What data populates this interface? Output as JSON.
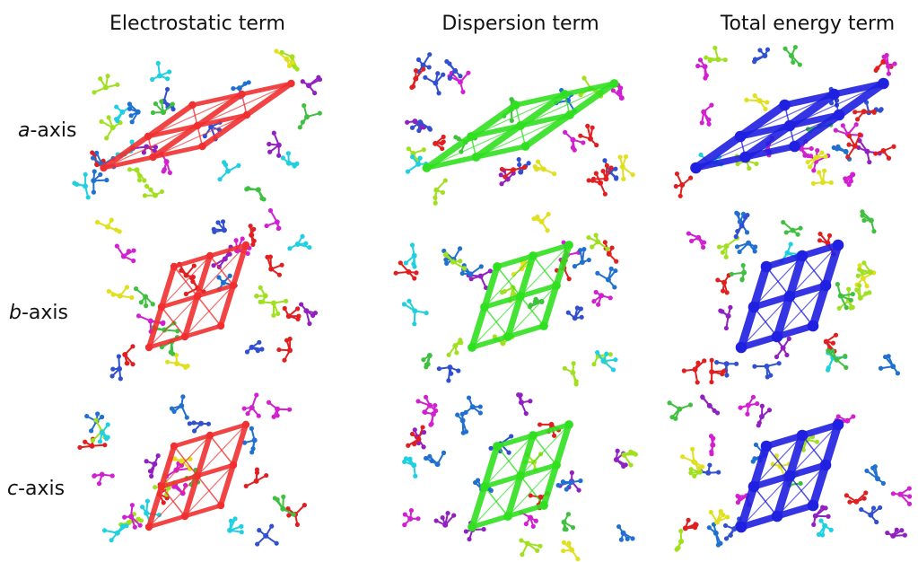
{
  "columns": [
    "Electrostatic term",
    "Dispersion term",
    "Total energy term"
  ],
  "rows": [
    {
      "axis": "a",
      "suffix": "-axis"
    },
    {
      "axis": "b",
      "suffix": "-axis"
    },
    {
      "axis": "c",
      "suffix": "-axis"
    }
  ]
}
